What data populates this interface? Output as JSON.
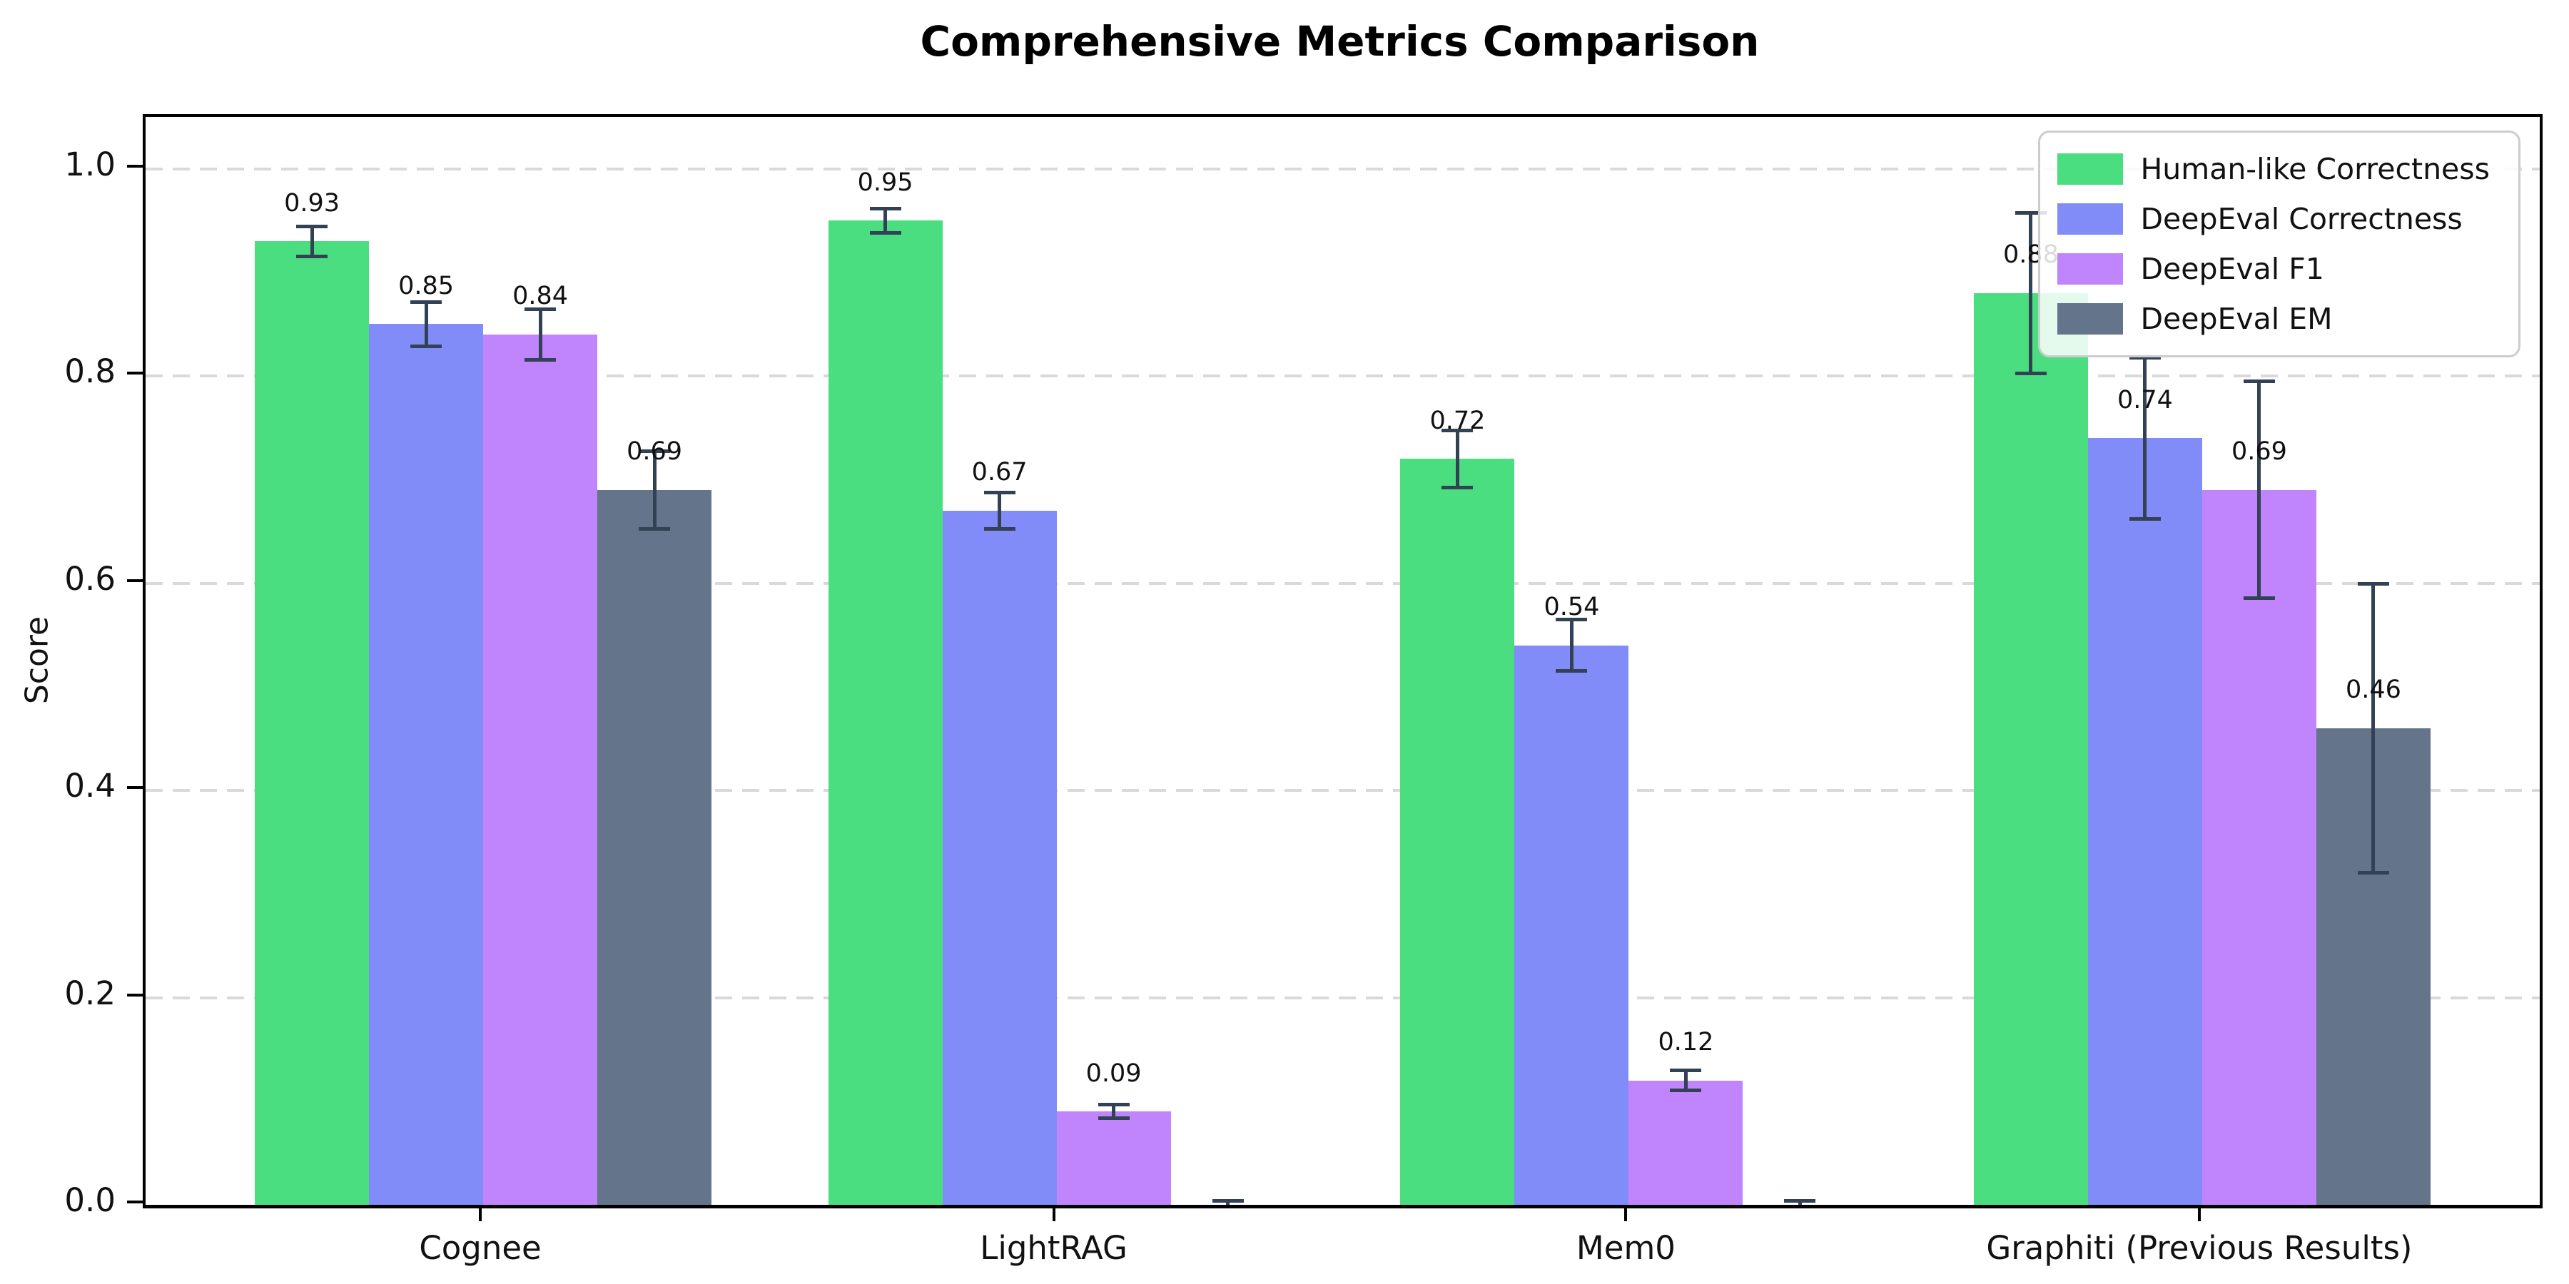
{
  "chart_data": {
    "type": "bar",
    "title": "Comprehensive Metrics Comparison",
    "xlabel": "",
    "ylabel": "Score",
    "categories": [
      "Cognee",
      "LightRAG",
      "Mem0",
      "Graphiti (Previous Results)"
    ],
    "series": [
      {
        "name": "Human-like Correctness",
        "color": "#4ade80",
        "values": [
          0.93,
          0.95,
          0.72,
          0.88
        ],
        "errors": [
          0.015,
          0.012,
          0.028,
          0.078
        ]
      },
      {
        "name": "DeepEval Correctness",
        "color": "#818cf8",
        "values": [
          0.85,
          0.67,
          0.54,
          0.74
        ],
        "errors": [
          0.022,
          0.018,
          0.025,
          0.078
        ]
      },
      {
        "name": "DeepEval F1",
        "color": "#c084fc",
        "values": [
          0.84,
          0.09,
          0.12,
          0.69
        ],
        "errors": [
          0.025,
          0.007,
          0.01,
          0.105
        ]
      },
      {
        "name": "DeepEval EM",
        "color": "#64748b",
        "values": [
          0.69,
          0.0,
          0.0,
          0.46
        ],
        "errors": [
          0.038,
          0.004,
          0.004,
          0.14
        ]
      }
    ],
    "bar_value_labels": [
      [
        "0.93",
        "0.95",
        "0.72",
        "0.88"
      ],
      [
        "0.85",
        "0.67",
        "0.54",
        "0.74"
      ],
      [
        "0.84",
        "0.09",
        "0.12",
        "0.69"
      ],
      [
        "0.69",
        "",
        "",
        "0.46"
      ]
    ],
    "yticks": [
      {
        "v": 0.0,
        "label": "0.0"
      },
      {
        "v": 0.2,
        "label": "0.2"
      },
      {
        "v": 0.4,
        "label": "0.4"
      },
      {
        "v": 0.6,
        "label": "0.6"
      },
      {
        "v": 0.8,
        "label": "0.8"
      },
      {
        "v": 1.0,
        "label": "1.0"
      }
    ],
    "ylim": [
      0,
      1.05
    ],
    "grid": "horizontal-dashed",
    "legend_position": "upper right"
  },
  "colors": {
    "error_bar": "#334155",
    "grid": "#d9d9d9",
    "axis": "#000000",
    "legend_border": "#cccccc",
    "background": "#ffffff"
  }
}
